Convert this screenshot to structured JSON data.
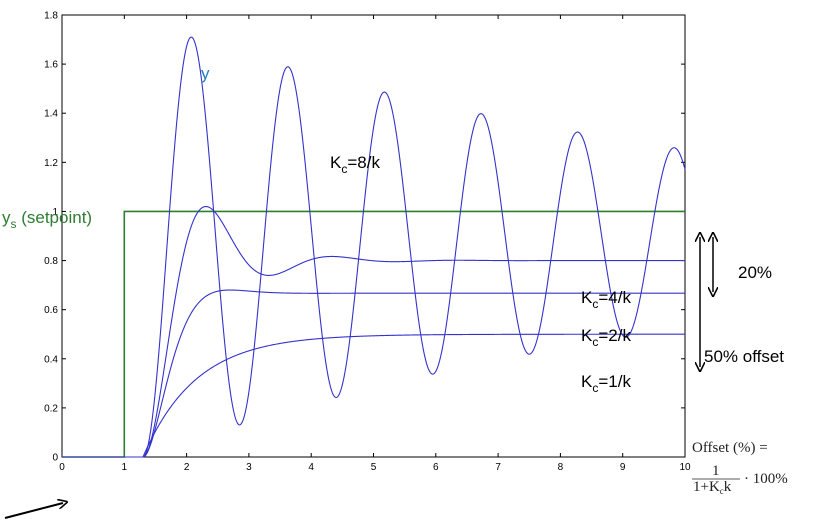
{
  "chart_data": {
    "type": "line",
    "title": "",
    "xlabel": "",
    "ylabel": "",
    "xlim": [
      0,
      10
    ],
    "ylim": [
      0,
      1.8
    ],
    "x_ticks": [
      "0",
      "1",
      "2",
      "3",
      "4",
      "5",
      "6",
      "7",
      "8",
      "9",
      "10"
    ],
    "y_ticks": [
      "0",
      "0.2",
      "0.4",
      "0.6",
      "0.8",
      "1",
      "1.2",
      "1.4",
      "1.6",
      "1.8"
    ],
    "grid": false,
    "colors": {
      "setpoint": "#2e7d32",
      "response": "#3333cc",
      "axis": "#000000",
      "label_y": "#1f7fbf"
    },
    "setpoint": {
      "step_time": 1,
      "value": 1
    },
    "dead_time": 1.3,
    "series": [
      {
        "gain_label": "K",
        "gain_sub": "c",
        "gain_rest": "=8/k",
        "final_value": 0.889,
        "peak": 1.71,
        "peak_time": 1.88,
        "period": 1.55
      },
      {
        "gain_label": "K",
        "gain_sub": "c",
        "gain_rest": "=4/k",
        "final_value": 0.8,
        "peak": 1.02,
        "peak_time": 2.12,
        "period": 2.02
      },
      {
        "gain_label": "K",
        "gain_sub": "c",
        "gain_rest": "=2/k",
        "final_value": 0.667,
        "peak": 0.68,
        "peak_time": 2.7
      },
      {
        "gain_label": "K",
        "gain_sub": "c",
        "gain_rest": "=1/k",
        "final_value": 0.5,
        "tau": 0.85
      }
    ]
  },
  "annotations": {
    "y_label": "y",
    "setpoint_label_main": "y",
    "setpoint_label_sub": "s",
    "setpoint_label_rest": " (setpoint)",
    "offset_20": "20%",
    "offset_50": "50% offset",
    "formula_line1": "Offset (%) =",
    "formula_frac_num": "1",
    "formula_frac_den": "1+K",
    "formula_frac_den_sub": "c",
    "formula_frac_den_rest": "k",
    "formula_tail": "· 100%"
  }
}
